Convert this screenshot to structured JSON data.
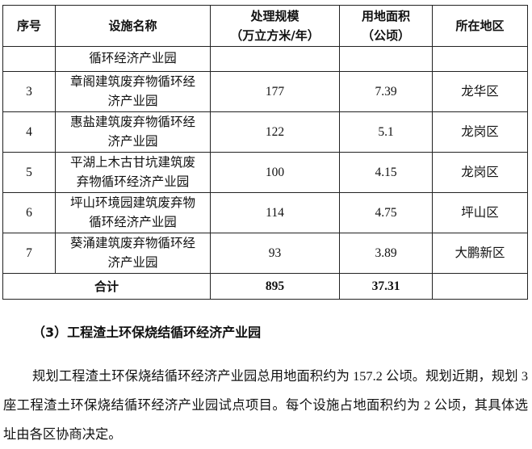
{
  "table": {
    "headers": [
      "序号",
      "设施名称",
      "处理规模\n（万立方米/年）",
      "用地面积\n（公顷）",
      "所在地区"
    ],
    "header_lines": {
      "scale_1": "处理规模",
      "scale_2": "（万立方米/年）",
      "area_1": "用地面积",
      "area_2": "（公顷）"
    },
    "continuation": {
      "name": "循环经济产业园"
    },
    "rows": [
      {
        "no": "3",
        "name": "章阁建筑废弃物循环经济产业园",
        "scale": "177",
        "area": "7.39",
        "district": "龙华区"
      },
      {
        "no": "4",
        "name": "惠盐建筑废弃物循环经济产业园",
        "scale": "122",
        "area": "5.1",
        "district": "龙岗区"
      },
      {
        "no": "5",
        "name": "平湖上木古甘坑建筑废弃物循环经济产业园",
        "scale": "100",
        "area": "4.15",
        "district": "龙岗区"
      },
      {
        "no": "6",
        "name": "坪山环境园建筑废弃物循环经济产业园",
        "scale": "114",
        "area": "4.75",
        "district": "坪山区"
      },
      {
        "no": "7",
        "name": "葵涌建筑废弃物循环经济产业园",
        "scale": "93",
        "area": "3.89",
        "district": "大鹏新区"
      }
    ],
    "total": {
      "label": "合计",
      "scale": "895",
      "area": "37.31"
    }
  },
  "section": {
    "heading": "（3）工程渣土环保烧结循环经济产业园",
    "paragraph": "规划工程渣土环保烧结循环经济产业园总用地面积约为 157.2 公顷。规划近期，规划 3 座工程渣土环保烧结循环经济产业园试点项目。每个设施占地面积约为 2 公顷，其具体选址由各区协商决定。"
  }
}
